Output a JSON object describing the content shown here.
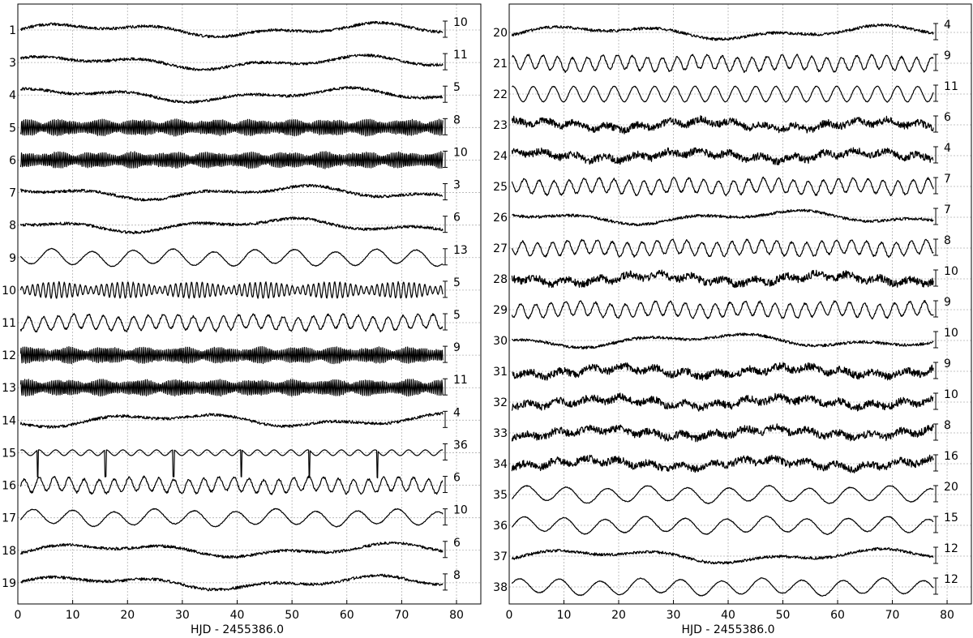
{
  "chart_data": [
    {
      "type": "line",
      "panel": "left",
      "xlabel": "HJD - 2455386.0",
      "xlim": [
        0,
        80
      ],
      "xticks": [
        "0",
        "10",
        "20",
        "30",
        "40",
        "50",
        "60",
        "70",
        "80"
      ],
      "grid": true,
      "series": [
        {
          "name": "1",
          "scale": "10",
          "style": "slow"
        },
        {
          "name": "3",
          "scale": "11",
          "style": "slow"
        },
        {
          "name": "4",
          "scale": "5",
          "style": "slow"
        },
        {
          "name": "5",
          "scale": "8",
          "style": "beat"
        },
        {
          "name": "6",
          "scale": "10",
          "style": "beat"
        },
        {
          "name": "7",
          "scale": "3",
          "style": "slow"
        },
        {
          "name": "8",
          "scale": "6",
          "style": "slow"
        },
        {
          "name": "9",
          "scale": "13",
          "style": "wave"
        },
        {
          "name": "10",
          "scale": "5",
          "style": "beat2"
        },
        {
          "name": "11",
          "scale": "5",
          "style": "wave2"
        },
        {
          "name": "12",
          "scale": "9",
          "style": "beat"
        },
        {
          "name": "13",
          "scale": "11",
          "style": "beat"
        },
        {
          "name": "14",
          "scale": "4",
          "style": "slow"
        },
        {
          "name": "15",
          "scale": "36",
          "style": "eclipse"
        },
        {
          "name": "16",
          "scale": "6",
          "style": "wave2"
        },
        {
          "name": "17",
          "scale": "10",
          "style": "wave"
        },
        {
          "name": "18",
          "scale": "6",
          "style": "slow"
        },
        {
          "name": "19",
          "scale": "8",
          "style": "slow"
        }
      ]
    },
    {
      "type": "line",
      "panel": "right",
      "xlabel": "HJD - 2455386.0",
      "xlim": [
        0,
        80
      ],
      "xticks": [
        "0",
        "10",
        "20",
        "30",
        "40",
        "50",
        "60",
        "70",
        "80"
      ],
      "grid": true,
      "series": [
        {
          "name": "20",
          "scale": "4",
          "style": "slow"
        },
        {
          "name": "21",
          "scale": "9",
          "style": "wave2"
        },
        {
          "name": "22",
          "scale": "11",
          "style": "wave3"
        },
        {
          "name": "23",
          "scale": "6",
          "style": "noisy"
        },
        {
          "name": "24",
          "scale": "4",
          "style": "noisy"
        },
        {
          "name": "25",
          "scale": "7",
          "style": "wave2"
        },
        {
          "name": "26",
          "scale": "7",
          "style": "slow"
        },
        {
          "name": "27",
          "scale": "8",
          "style": "wave2"
        },
        {
          "name": "28",
          "scale": "10",
          "style": "noisy"
        },
        {
          "name": "29",
          "scale": "9",
          "style": "wave2"
        },
        {
          "name": "30",
          "scale": "10",
          "style": "slow"
        },
        {
          "name": "31",
          "scale": "9",
          "style": "noisy"
        },
        {
          "name": "32",
          "scale": "10",
          "style": "noisy"
        },
        {
          "name": "33",
          "scale": "8",
          "style": "noisy"
        },
        {
          "name": "34",
          "scale": "16",
          "style": "noisy"
        },
        {
          "name": "35",
          "scale": "20",
          "style": "wave"
        },
        {
          "name": "36",
          "scale": "15",
          "style": "wave"
        },
        {
          "name": "37",
          "scale": "12",
          "style": "slow"
        },
        {
          "name": "38",
          "scale": "12",
          "style": "wave"
        }
      ]
    }
  ]
}
